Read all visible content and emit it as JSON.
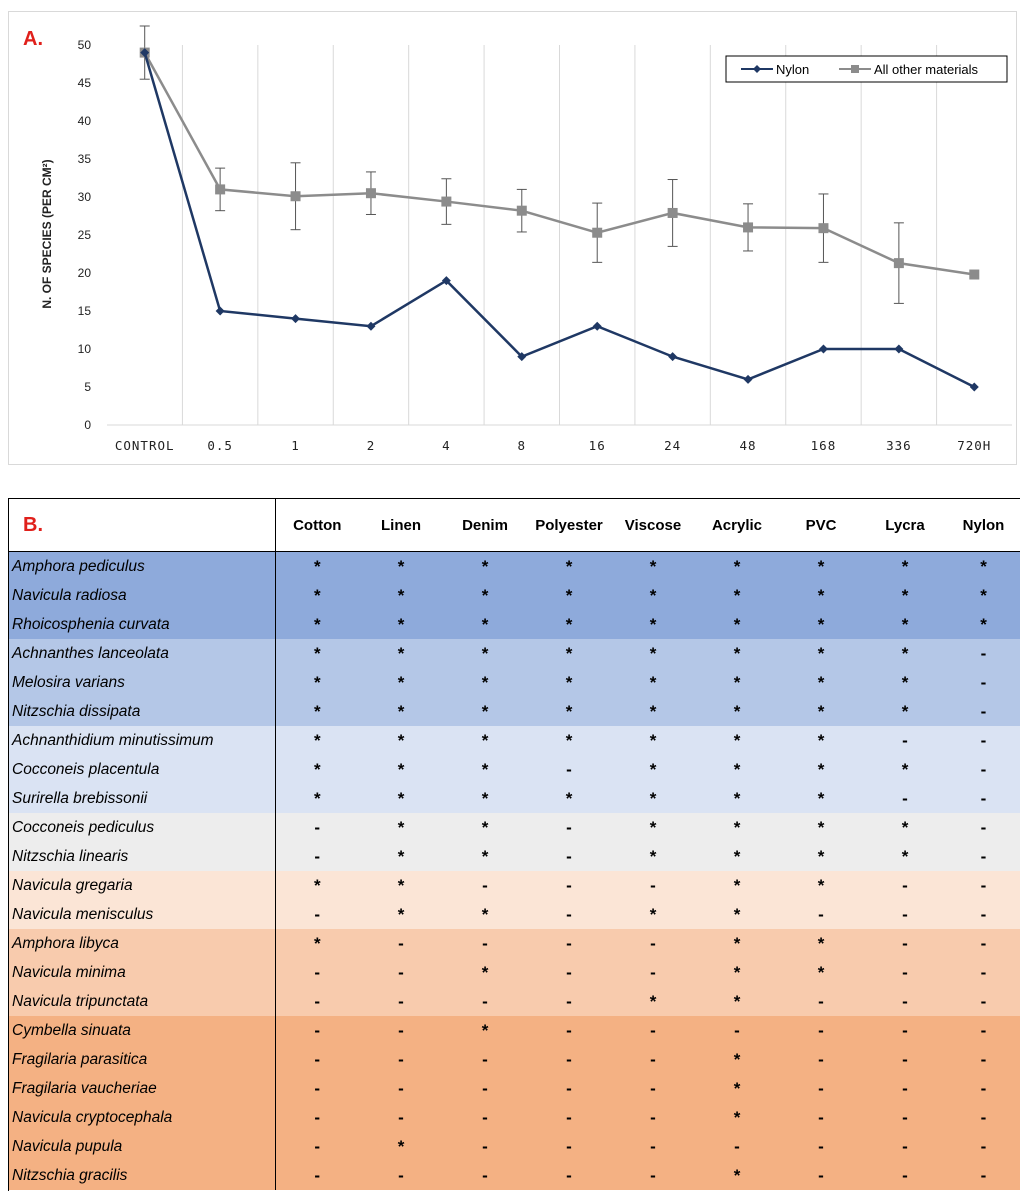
{
  "panel_a_label": "A.",
  "panel_b_label": "B.",
  "chart_data": {
    "type": "line",
    "title": "",
    "xlabel": "",
    "ylabel": "N. OF SPECIES (PER CM²)",
    "ylim": [
      0,
      50
    ],
    "yticks": [
      0,
      5,
      10,
      15,
      20,
      25,
      30,
      35,
      40,
      45,
      50
    ],
    "categories": [
      "CONTROL",
      "0.5",
      "1",
      "2",
      "4",
      "8",
      "16",
      "24",
      "48",
      "168",
      "336",
      "720H"
    ],
    "grid": "vertical",
    "legend_position": "top-right",
    "series": [
      {
        "name": "Nylon",
        "color": "#1f3864",
        "marker": "diamond",
        "values": [
          49,
          15,
          14,
          13,
          19,
          9,
          13,
          9,
          6,
          10,
          10,
          5
        ]
      },
      {
        "name": "All other materials",
        "color": "#8c8c8c",
        "marker": "square",
        "values": [
          49,
          31,
          30.1,
          30.5,
          29.4,
          28.2,
          25.3,
          27.9,
          26,
          25.9,
          21.3,
          19.8
        ],
        "error": [
          3.5,
          2.8,
          4.4,
          2.8,
          3.0,
          2.8,
          3.9,
          4.4,
          3.1,
          4.5,
          5.3,
          0
        ]
      }
    ]
  },
  "table": {
    "columns": [
      "Cotton",
      "Linen",
      "Denim",
      "Polyester",
      "Viscose",
      "Acrylic",
      "PVC",
      "Lycra",
      "Nylon"
    ],
    "rows": [
      {
        "species": "Amphora pediculus",
        "group": 0,
        "marks": [
          "*",
          "*",
          "*",
          "*",
          "*",
          "*",
          "*",
          "*",
          "*"
        ]
      },
      {
        "species": "Navicula radiosa",
        "group": 0,
        "marks": [
          "*",
          "*",
          "*",
          "*",
          "*",
          "*",
          "*",
          "*",
          "*"
        ]
      },
      {
        "species": "Rhoicosphenia curvata",
        "group": 0,
        "marks": [
          "*",
          "*",
          "*",
          "*",
          "*",
          "*",
          "*",
          "*",
          "*"
        ]
      },
      {
        "species": "Achnanthes lanceolata",
        "group": 1,
        "marks": [
          "*",
          "*",
          "*",
          "*",
          "*",
          "*",
          "*",
          "*",
          "-"
        ]
      },
      {
        "species": "Melosira varians",
        "group": 1,
        "marks": [
          "*",
          "*",
          "*",
          "*",
          "*",
          "*",
          "*",
          "*",
          "-"
        ]
      },
      {
        "species": "Nitzschia dissipata",
        "group": 1,
        "marks": [
          "*",
          "*",
          "*",
          "*",
          "*",
          "*",
          "*",
          "*",
          "-"
        ]
      },
      {
        "species": "Achnanthidium minutissimum",
        "group": 2,
        "marks": [
          "*",
          "*",
          "*",
          "*",
          "*",
          "*",
          "*",
          "-",
          "-"
        ]
      },
      {
        "species": "Cocconeis placentula",
        "group": 2,
        "marks": [
          "*",
          "*",
          "*",
          "-",
          "*",
          "*",
          "*",
          "*",
          "-"
        ]
      },
      {
        "species": "Surirella brebissonii",
        "group": 2,
        "marks": [
          "*",
          "*",
          "*",
          "*",
          "*",
          "*",
          "*",
          "-",
          "-"
        ]
      },
      {
        "species": "Cocconeis pediculus",
        "group": 3,
        "marks": [
          "-",
          "*",
          "*",
          "-",
          "*",
          "*",
          "*",
          "*",
          "-"
        ]
      },
      {
        "species": "Nitzschia linearis",
        "group": 3,
        "marks": [
          "-",
          "*",
          "*",
          "-",
          "*",
          "*",
          "*",
          "*",
          "-"
        ]
      },
      {
        "species": "Navicula gregaria",
        "group": 4,
        "marks": [
          "*",
          "*",
          "-",
          "-",
          "-",
          "*",
          "*",
          "-",
          "-"
        ]
      },
      {
        "species": "Navicula menisculus",
        "group": 4,
        "marks": [
          "-",
          "*",
          "*",
          "-",
          "*",
          "*",
          "-",
          "-",
          "-"
        ]
      },
      {
        "species": "Amphora libyca",
        "group": 5,
        "marks": [
          "*",
          "-",
          "-",
          "-",
          "-",
          "*",
          "*",
          "-",
          "-"
        ]
      },
      {
        "species": "Navicula minima",
        "group": 5,
        "marks": [
          "-",
          "-",
          "*",
          "-",
          "-",
          "*",
          "*",
          "-",
          "-"
        ]
      },
      {
        "species": "Navicula tripunctata",
        "group": 5,
        "marks": [
          "-",
          "-",
          "-",
          "-",
          "*",
          "*",
          "-",
          "-",
          "-"
        ]
      },
      {
        "species": "Cymbella sinuata",
        "group": 6,
        "marks": [
          "-",
          "-",
          "*",
          "-",
          "-",
          "-",
          "-",
          "-",
          "-"
        ]
      },
      {
        "species": "Fragilaria parasitica",
        "group": 6,
        "marks": [
          "-",
          "-",
          "-",
          "-",
          "-",
          "*",
          "-",
          "-",
          "-"
        ]
      },
      {
        "species": "Fragilaria vaucheriae",
        "group": 6,
        "marks": [
          "-",
          "-",
          "-",
          "-",
          "-",
          "*",
          "-",
          "-",
          "-"
        ]
      },
      {
        "species": "Navicula cryptocephala",
        "group": 6,
        "marks": [
          "-",
          "-",
          "-",
          "-",
          "-",
          "*",
          "-",
          "-",
          "-"
        ]
      },
      {
        "species": "Navicula pupula",
        "group": 6,
        "marks": [
          "-",
          "*",
          "-",
          "-",
          "-",
          "-",
          "-",
          "-",
          "-"
        ]
      },
      {
        "species": "Nitzschia gracilis",
        "group": 6,
        "marks": [
          "-",
          "-",
          "-",
          "-",
          "-",
          "*",
          "-",
          "-",
          "-"
        ]
      }
    ]
  }
}
